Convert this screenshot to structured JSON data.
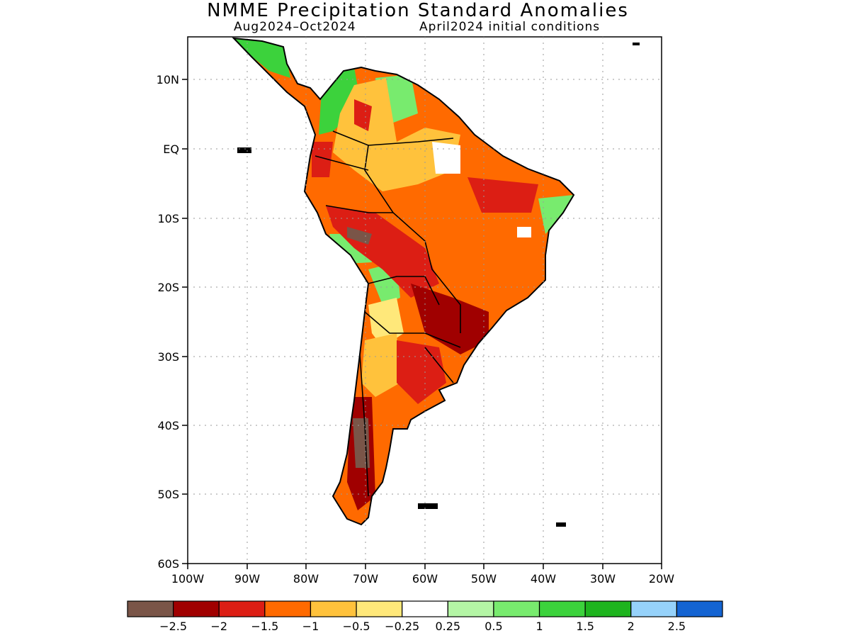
{
  "title": "NMME Precipitation Standard Anomalies",
  "subtitle_period": "Aug2024–Oct2024",
  "subtitle_ic": "April2024 initial conditions",
  "lat_labels": [
    "10N",
    "EQ",
    "10S",
    "20S",
    "30S",
    "40S",
    "50S",
    "60S"
  ],
  "lon_labels": [
    "100W",
    "90W",
    "80W",
    "70W",
    "60W",
    "50W",
    "40W",
    "30W",
    "20W"
  ],
  "colorbar": {
    "colors": [
      "#7a5548",
      "#a00000",
      "#dc1e14",
      "#ff6a00",
      "#ffc23c",
      "#ffe87a",
      "#ffffff",
      "#b4f5a5",
      "#78eb6e",
      "#3cd23c",
      "#1eb41e",
      "#96d2fa",
      "#1464d2"
    ],
    "labels": [
      "−2.5",
      "−2",
      "−1.5",
      "−1",
      "−0.5",
      "−0.25",
      "0.25",
      "0.5",
      "1",
      "1.5",
      "2",
      "2.5"
    ]
  },
  "colors": {
    "coast": "#000000",
    "grid": "#9a9a9a"
  }
}
